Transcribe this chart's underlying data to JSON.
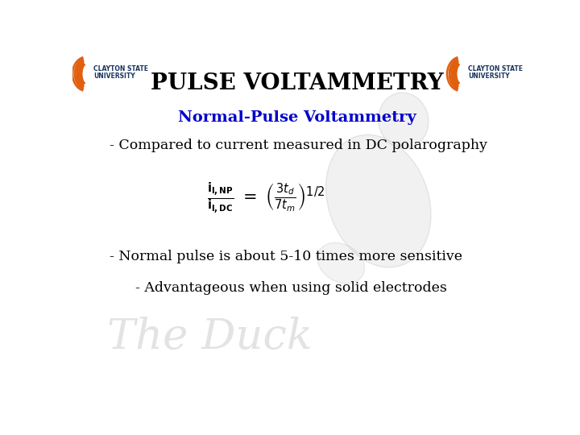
{
  "title": "PULSE VOLTAMMETRY",
  "subtitle": "Normal-Pulse Voltammetry",
  "subtitle_color": "#0000CC",
  "line1": "- Compared to current measured in DC polarography",
  "line2": "- Normal pulse is about 5-10 times more sensitive",
  "line3": "- Advantageous when using solid electrodes",
  "bg_color": "#ffffff",
  "title_color": "#000000",
  "text_color": "#000000",
  "title_fontsize": 20,
  "subtitle_fontsize": 14,
  "body_fontsize": 12.5,
  "eq_fontsize": 15,
  "logo_orange": "#E06010",
  "logo_blue": "#1A3560",
  "watermark_color": "#cccccc"
}
